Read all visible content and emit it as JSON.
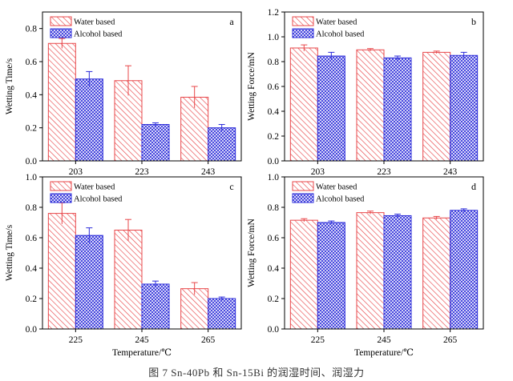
{
  "caption": "图 7  Sn-40Pb 和 Sn-15Bi 的润湿时间、润湿力",
  "styles": {
    "water_color": "#e8474a",
    "alcohol_color": "#2b2bd9"
  },
  "chart_data": [
    {
      "type": "bar",
      "panel_label": "a",
      "categories": [
        "203",
        "223",
        "243"
      ],
      "xlabel": "",
      "ylabel": "Wetting Time/s",
      "ylim": [
        0,
        0.9
      ],
      "yticks": [
        0.0,
        0.2,
        0.4,
        0.6,
        0.8
      ],
      "legend_position": "top-left",
      "series": [
        {
          "name": "Water based",
          "values": [
            0.71,
            0.485,
            0.385
          ],
          "errors": [
            0.03,
            0.09,
            0.065
          ]
        },
        {
          "name": "Alcohol based",
          "values": [
            0.495,
            0.22,
            0.2
          ],
          "errors": [
            0.045,
            0.01,
            0.02
          ]
        }
      ]
    },
    {
      "type": "bar",
      "panel_label": "b",
      "categories": [
        "203",
        "223",
        "243"
      ],
      "xlabel": "",
      "ylabel": "Wetting Force/mN",
      "ylim": [
        0,
        1.2
      ],
      "yticks": [
        0.0,
        0.2,
        0.4,
        0.6,
        0.8,
        1.0,
        1.2
      ],
      "legend_position": "top-left",
      "series": [
        {
          "name": "Water based",
          "values": [
            0.91,
            0.895,
            0.875
          ],
          "errors": [
            0.025,
            0.01,
            0.01
          ]
        },
        {
          "name": "Alcohol based",
          "values": [
            0.845,
            0.83,
            0.85
          ],
          "errors": [
            0.03,
            0.015,
            0.025
          ]
        }
      ]
    },
    {
      "type": "bar",
      "panel_label": "c",
      "categories": [
        "225",
        "245",
        "265"
      ],
      "xlabel": "Temperature/℃",
      "ylabel": "Wetting Time/s",
      "ylim": [
        0,
        1.0
      ],
      "yticks": [
        0.0,
        0.2,
        0.4,
        0.6,
        0.8,
        1.0
      ],
      "legend_position": "top-left",
      "series": [
        {
          "name": "Water based",
          "values": [
            0.76,
            0.65,
            0.265
          ],
          "errors": [
            0.07,
            0.07,
            0.04
          ]
        },
        {
          "name": "Alcohol based",
          "values": [
            0.615,
            0.295,
            0.2
          ],
          "errors": [
            0.05,
            0.02,
            0.01
          ]
        }
      ]
    },
    {
      "type": "bar",
      "panel_label": "d",
      "categories": [
        "225",
        "245",
        "265"
      ],
      "xlabel": "Temperature/℃",
      "ylabel": "Wetting Force/mN",
      "ylim": [
        0,
        1.0
      ],
      "yticks": [
        0.0,
        0.2,
        0.4,
        0.6,
        0.8,
        1.0
      ],
      "legend_position": "top-left",
      "series": [
        {
          "name": "Water based",
          "values": [
            0.715,
            0.765,
            0.73
          ],
          "errors": [
            0.01,
            0.01,
            0.01
          ]
        },
        {
          "name": "Alcohol based",
          "values": [
            0.7,
            0.745,
            0.78
          ],
          "errors": [
            0.01,
            0.01,
            0.01
          ]
        }
      ]
    }
  ]
}
